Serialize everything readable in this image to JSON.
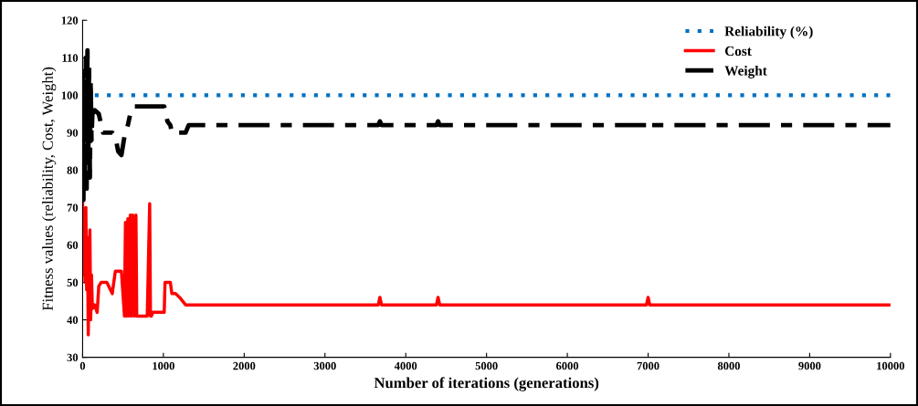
{
  "chart_data": {
    "type": "line",
    "xlabel": "Number of iterations (generations)",
    "ylabel": "Fitness values (reliability, Cost, Weight)",
    "xlim": [
      0,
      10000
    ],
    "xticks": [
      0,
      1000,
      2000,
      3000,
      4000,
      5000,
      6000,
      7000,
      8000,
      9000,
      10000
    ],
    "ylim": [
      30,
      120
    ],
    "yticks": [
      30,
      40,
      50,
      60,
      70,
      80,
      90,
      100,
      110,
      120
    ],
    "grid": false,
    "legend": "top right",
    "marker": "none",
    "series": [
      {
        "name": "Reliability (%)",
        "color": "#0070c0",
        "line_style": "dotted",
        "x": [
          0,
          10000
        ],
        "values": [
          100,
          100
        ]
      },
      {
        "name": "Cost",
        "color": "#ff0000",
        "line_style": "solid",
        "x": [
          0,
          10,
          20,
          30,
          40,
          50,
          60,
          70,
          80,
          90,
          100,
          110,
          121,
          150,
          180,
          200,
          230,
          253,
          300,
          367,
          405,
          440,
          480,
          518,
          530,
          545,
          560,
          575,
          590,
          605,
          620,
          640,
          660,
          670,
          700,
          800,
          830,
          840,
          850,
          870,
          1010,
          1020,
          1086,
          1105,
          1150,
          1200,
          1275,
          1313,
          3660,
          3680,
          3700,
          4380,
          4400,
          4420,
          6980,
          7000,
          7020,
          10000
        ],
        "values": [
          71,
          52,
          66,
          50,
          70,
          48,
          62,
          36,
          55,
          64,
          40,
          52,
          43,
          44,
          42,
          49,
          50,
          50,
          50,
          47,
          53,
          53,
          53,
          41,
          66,
          41,
          67,
          41,
          68,
          41,
          68,
          41,
          68,
          41,
          41,
          41,
          71,
          41,
          41,
          42,
          42,
          50,
          50,
          47,
          47,
          46,
          44,
          44,
          44,
          46,
          44,
          44,
          46,
          44,
          44,
          46,
          44,
          44
        ]
      },
      {
        "name": "Weight",
        "color": "#000000",
        "line_style": "dashed",
        "x": [
          0,
          10,
          20,
          30,
          40,
          50,
          60,
          70,
          80,
          90,
          100,
          110,
          121,
          150,
          200,
          253,
          300,
          367,
          405,
          440,
          480,
          518,
          560,
          600,
          640,
          670,
          800,
          900,
          1010,
          1050,
          1086,
          1105,
          1200,
          1275,
          1313,
          3660,
          3680,
          3700,
          4380,
          4400,
          4420,
          6980,
          7000,
          7020,
          10000
        ],
        "values": [
          107,
          72,
          105,
          80,
          110,
          75,
          112,
          82,
          108,
          78,
          104,
          88,
          95,
          96,
          95,
          90,
          90,
          90,
          89,
          85,
          84,
          89,
          92,
          96,
          97,
          97,
          97,
          97,
          97,
          93,
          92,
          90,
          90,
          90,
          92,
          92,
          93,
          92,
          92,
          93,
          92,
          92,
          93,
          92,
          92
        ]
      }
    ]
  }
}
